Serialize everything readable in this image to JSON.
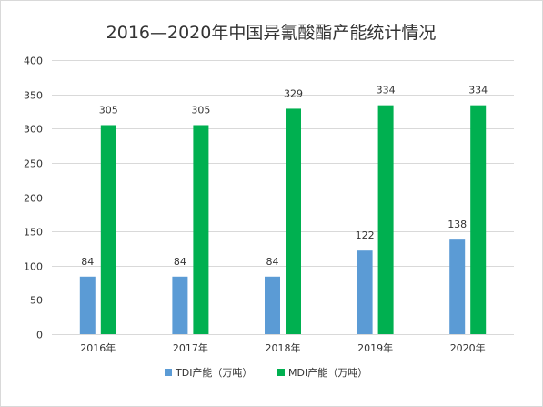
{
  "chart_data": {
    "type": "bar",
    "title": "2016—2020年中国异氰酸酯产能统计情况",
    "categories": [
      "2016年",
      "2017年",
      "2018年",
      "2019年",
      "2020年"
    ],
    "series": [
      {
        "name": "TDI产能（万吨）",
        "values": [
          84,
          84,
          84,
          122,
          138
        ],
        "color": "#5b9bd5"
      },
      {
        "name": "MDI产能（万吨）",
        "values": [
          305,
          305,
          329,
          334,
          334
        ],
        "color": "#00b050"
      }
    ],
    "ylim": [
      0,
      400
    ],
    "yticks": [
      0,
      50,
      100,
      150,
      200,
      250,
      300,
      350,
      400
    ],
    "grid": true,
    "legend_position": "bottom",
    "data_labels": true,
    "border_color": "#d9d9d9",
    "grid_color": "#d9d9d9"
  }
}
